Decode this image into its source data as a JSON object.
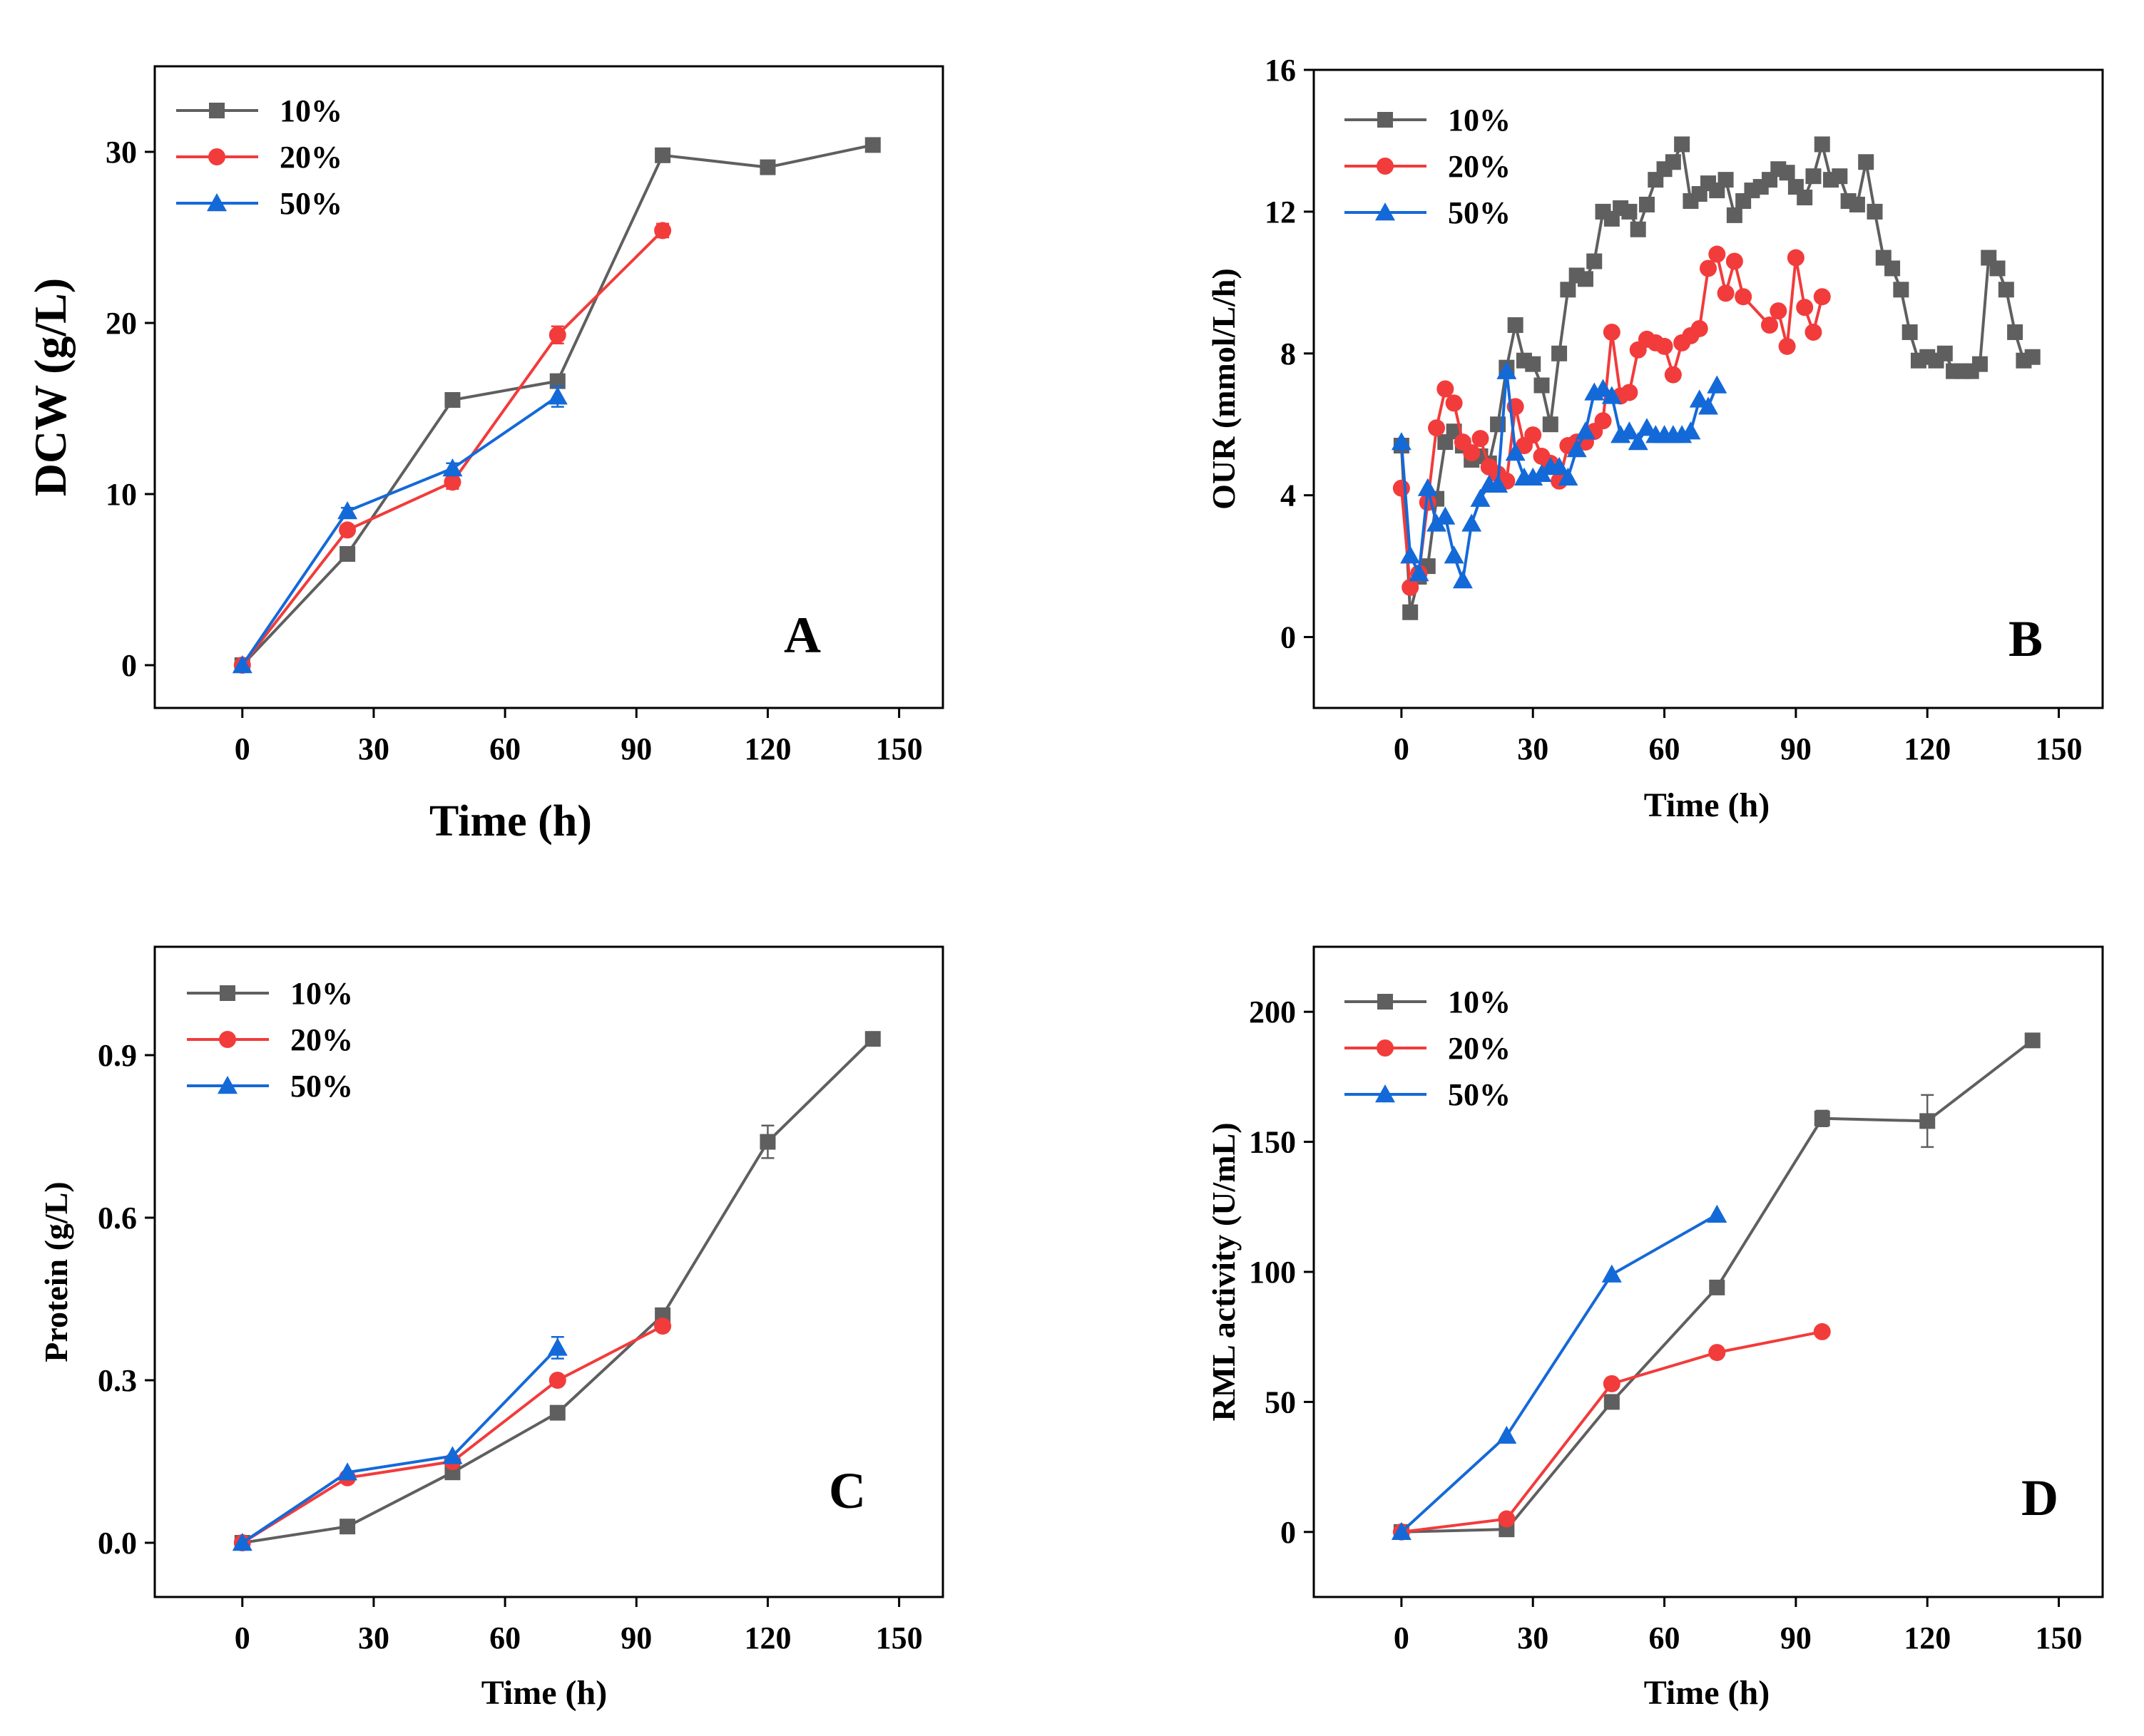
{
  "colors": {
    "s10": "#5f5f5f",
    "s20": "#f23b3b",
    "s50": "#1469d8",
    "axis": "#000000"
  },
  "chart_data": [
    {
      "id": "A",
      "type": "line",
      "panel_label": "A",
      "xlabel": "Time (h)",
      "ylabel": "DCW (g/L)",
      "xlim": [
        -20,
        160
      ],
      "ylim": [
        -2.5,
        35
      ],
      "xticks": [
        0,
        30,
        60,
        90,
        120,
        150
      ],
      "yticks": [
        0,
        10,
        20,
        30
      ],
      "series": [
        {
          "name": "10%",
          "color": "#5f5f5f",
          "marker": "square",
          "x": [
            0,
            24,
            48,
            72,
            96,
            120,
            144
          ],
          "y": [
            0,
            6.5,
            15.5,
            16.6,
            29.8,
            29.1,
            30.4
          ],
          "err": []
        },
        {
          "name": "20%",
          "color": "#f23b3b",
          "marker": "circle",
          "x": [
            0,
            24,
            48,
            72,
            96
          ],
          "y": [
            0,
            7.9,
            10.7,
            19.3,
            25.4
          ],
          "err": [
            0,
            0.2,
            0.4,
            0.5,
            0.4
          ]
        },
        {
          "name": "50%",
          "color": "#1469d8",
          "marker": "triangle",
          "x": [
            0,
            24,
            48,
            72
          ],
          "y": [
            0,
            9.0,
            11.5,
            15.7
          ],
          "err": [
            0,
            0.2,
            0.3,
            0.6
          ]
        }
      ]
    },
    {
      "id": "B",
      "type": "line",
      "panel_label": "B",
      "xlabel": "Time (h)",
      "ylabel": "OUR (mmol/L/h)",
      "xlim": [
        -20,
        160
      ],
      "ylim": [
        -2,
        16
      ],
      "xticks": [
        0,
        30,
        60,
        90,
        120,
        150
      ],
      "yticks": [
        0,
        4,
        8,
        12,
        16
      ],
      "series": [
        {
          "name": "10%",
          "color": "#5f5f5f",
          "marker": "square",
          "x": [
            0,
            2,
            4,
            6,
            8,
            10,
            12,
            14,
            16,
            18,
            20,
            22,
            24,
            26,
            28,
            30,
            32,
            34,
            36,
            38,
            40,
            42,
            44,
            46,
            48,
            50,
            52,
            54,
            56,
            58,
            60,
            62,
            64,
            66,
            68,
            70,
            72,
            74,
            76,
            78,
            80,
            82,
            84,
            86,
            88,
            90,
            92,
            94,
            96,
            98,
            100,
            102,
            104,
            106,
            108,
            110,
            112,
            114,
            116,
            118,
            120,
            122,
            124,
            126,
            128,
            130,
            132,
            134,
            136,
            138,
            140,
            142,
            144
          ],
          "y": [
            5.4,
            0.7,
            1.7,
            2.0,
            3.9,
            5.5,
            5.8,
            5.4,
            5.0,
            5.1,
            4.9,
            6.0,
            7.6,
            8.8,
            7.8,
            7.7,
            7.1,
            6.0,
            8.0,
            9.8,
            10.2,
            10.1,
            10.6,
            12.0,
            11.8,
            12.1,
            12.0,
            11.5,
            12.2,
            12.9,
            13.2,
            13.4,
            13.9,
            12.3,
            12.5,
            12.8,
            12.6,
            12.9,
            11.9,
            12.3,
            12.6,
            12.7,
            12.9,
            13.2,
            13.1,
            12.7,
            12.4,
            13.0,
            13.9,
            12.9,
            13.0,
            12.3,
            12.2,
            13.4,
            12.0,
            10.7,
            10.4,
            9.8,
            8.6,
            7.8,
            7.9,
            7.8,
            8.0,
            7.5,
            7.5,
            7.5,
            7.7,
            10.7,
            10.4,
            9.8,
            8.6,
            7.8,
            7.9
          ],
          "err": []
        },
        {
          "name": "20%",
          "color": "#f23b3b",
          "marker": "circle",
          "x": [
            0,
            2,
            4,
            6,
            8,
            10,
            12,
            14,
            16,
            18,
            20,
            22,
            24,
            26,
            28,
            30,
            32,
            34,
            36,
            38,
            40,
            42,
            44,
            46,
            48,
            50,
            52,
            54,
            56,
            58,
            60,
            62,
            64,
            66,
            68,
            70,
            72,
            74,
            76,
            78,
            84,
            86,
            88,
            90,
            92,
            94,
            96
          ],
          "y": [
            4.2,
            1.4,
            1.8,
            3.8,
            5.9,
            7.0,
            6.6,
            5.5,
            5.2,
            5.6,
            4.8,
            4.6,
            4.4,
            6.5,
            5.4,
            5.7,
            5.1,
            4.9,
            4.4,
            5.4,
            5.5,
            5.5,
            5.8,
            6.1,
            8.6,
            6.8,
            6.9,
            8.1,
            8.4,
            8.3,
            8.2,
            7.4,
            8.3,
            8.5,
            8.7,
            10.4,
            10.8,
            9.7,
            10.6,
            9.6,
            8.8,
            9.2,
            8.2,
            10.7,
            9.3,
            8.6,
            9.6
          ],
          "err": []
        },
        {
          "name": "50%",
          "color": "#1469d8",
          "marker": "triangle",
          "x": [
            0,
            2,
            4,
            6,
            8,
            10,
            12,
            14,
            16,
            18,
            20,
            22,
            24,
            26,
            28,
            30,
            32,
            34,
            36,
            38,
            40,
            42,
            44,
            46,
            48,
            50,
            52,
            54,
            56,
            58,
            60,
            62,
            64,
            66,
            68,
            70,
            72
          ],
          "y": [
            5.5,
            2.3,
            1.8,
            4.2,
            3.2,
            3.4,
            2.3,
            1.6,
            3.2,
            3.9,
            4.3,
            4.3,
            7.5,
            5.2,
            4.5,
            4.5,
            4.6,
            4.8,
            4.8,
            4.5,
            5.3,
            5.8,
            6.9,
            7.0,
            6.8,
            5.7,
            5.8,
            5.5,
            5.9,
            5.7,
            5.7,
            5.7,
            5.7,
            5.8,
            6.7,
            6.5,
            7.1
          ],
          "err": []
        }
      ]
    },
    {
      "id": "C",
      "type": "line",
      "panel_label": "C",
      "xlabel": "Time (h)",
      "ylabel": "Protein (g/L)",
      "xlim": [
        -20,
        160
      ],
      "ylim": [
        -0.1,
        1.1
      ],
      "xticks": [
        0,
        30,
        60,
        90,
        120,
        150
      ],
      "yticks": [
        0.0,
        0.3,
        0.6,
        0.9
      ],
      "ytick_labels": [
        "0.0",
        "0.3",
        "0.6",
        "0.9"
      ],
      "series": [
        {
          "name": "10%",
          "color": "#5f5f5f",
          "marker": "square",
          "x": [
            0,
            24,
            48,
            72,
            96,
            120,
            144
          ],
          "y": [
            0,
            0.03,
            0.13,
            0.24,
            0.42,
            0.74,
            0.93
          ],
          "err": [
            0,
            0,
            0,
            0,
            0,
            0.03,
            0
          ]
        },
        {
          "name": "20%",
          "color": "#f23b3b",
          "marker": "circle",
          "x": [
            0,
            24,
            48,
            72,
            96
          ],
          "y": [
            0,
            0.12,
            0.15,
            0.3,
            0.4
          ],
          "err": []
        },
        {
          "name": "50%",
          "color": "#1469d8",
          "marker": "triangle",
          "x": [
            0,
            24,
            48,
            72
          ],
          "y": [
            0,
            0.13,
            0.16,
            0.36
          ],
          "err": [
            0,
            0,
            0,
            0.02
          ]
        }
      ]
    },
    {
      "id": "D",
      "type": "line",
      "panel_label": "D",
      "xlabel": "Time (h)",
      "ylabel": "RML activity (U/mL)",
      "xlim": [
        -20,
        160
      ],
      "ylim": [
        -25,
        225
      ],
      "xticks": [
        0,
        30,
        60,
        90,
        120,
        150
      ],
      "yticks": [
        0,
        50,
        100,
        150,
        200
      ],
      "series": [
        {
          "name": "10%",
          "color": "#5f5f5f",
          "marker": "square",
          "x": [
            0,
            24,
            48,
            72,
            96,
            120,
            144
          ],
          "y": [
            0,
            1,
            50,
            94,
            159,
            158,
            189
          ],
          "err": [
            0,
            0,
            0,
            0,
            3,
            10,
            2
          ]
        },
        {
          "name": "20%",
          "color": "#f23b3b",
          "marker": "circle",
          "x": [
            0,
            24,
            48,
            72,
            96
          ],
          "y": [
            0,
            5,
            57,
            69,
            77
          ],
          "err": []
        },
        {
          "name": "50%",
          "color": "#1469d8",
          "marker": "triangle",
          "x": [
            0,
            24,
            48,
            72
          ],
          "y": [
            0,
            37,
            99,
            122
          ],
          "err": []
        }
      ]
    }
  ]
}
